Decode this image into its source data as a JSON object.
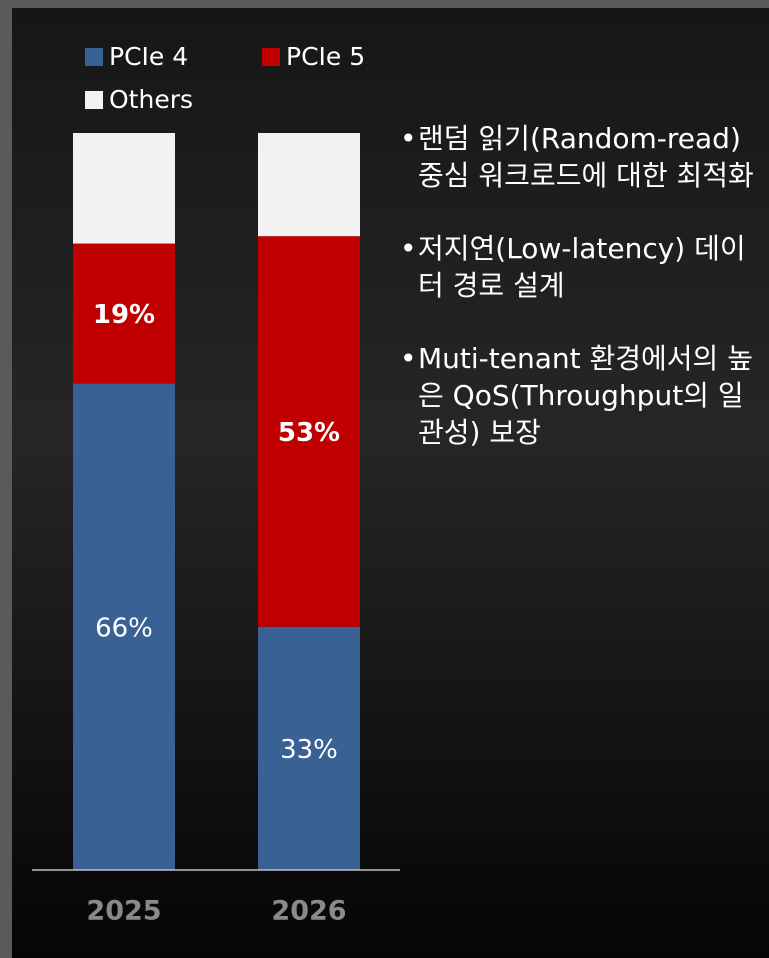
{
  "chart_data": {
    "type": "stacked_bar",
    "categories": [
      "2025",
      "2026"
    ],
    "series": [
      {
        "name": "PCIe 4",
        "color": "#3a6193",
        "values": [
          66,
          33
        ],
        "value_labels": [
          "66%",
          "33%"
        ]
      },
      {
        "name": "PCIe 5",
        "color": "#c00000",
        "values": [
          19,
          53
        ],
        "value_labels": [
          "19%",
          "53%"
        ]
      },
      {
        "name": "Others",
        "color": "#f2f2f2",
        "values": [
          15,
          14
        ],
        "value_labels": [
          null,
          null
        ]
      }
    ],
    "annotations": [
      "랜덤 읽기(Random-read) 중심 워크로드에 대한 최적화",
      "저지연(Low-latency) 데이터 경로 설계",
      "Muti-tenant 환경에서의 높은 QoS(Throughput의 일관성) 보장"
    ]
  }
}
